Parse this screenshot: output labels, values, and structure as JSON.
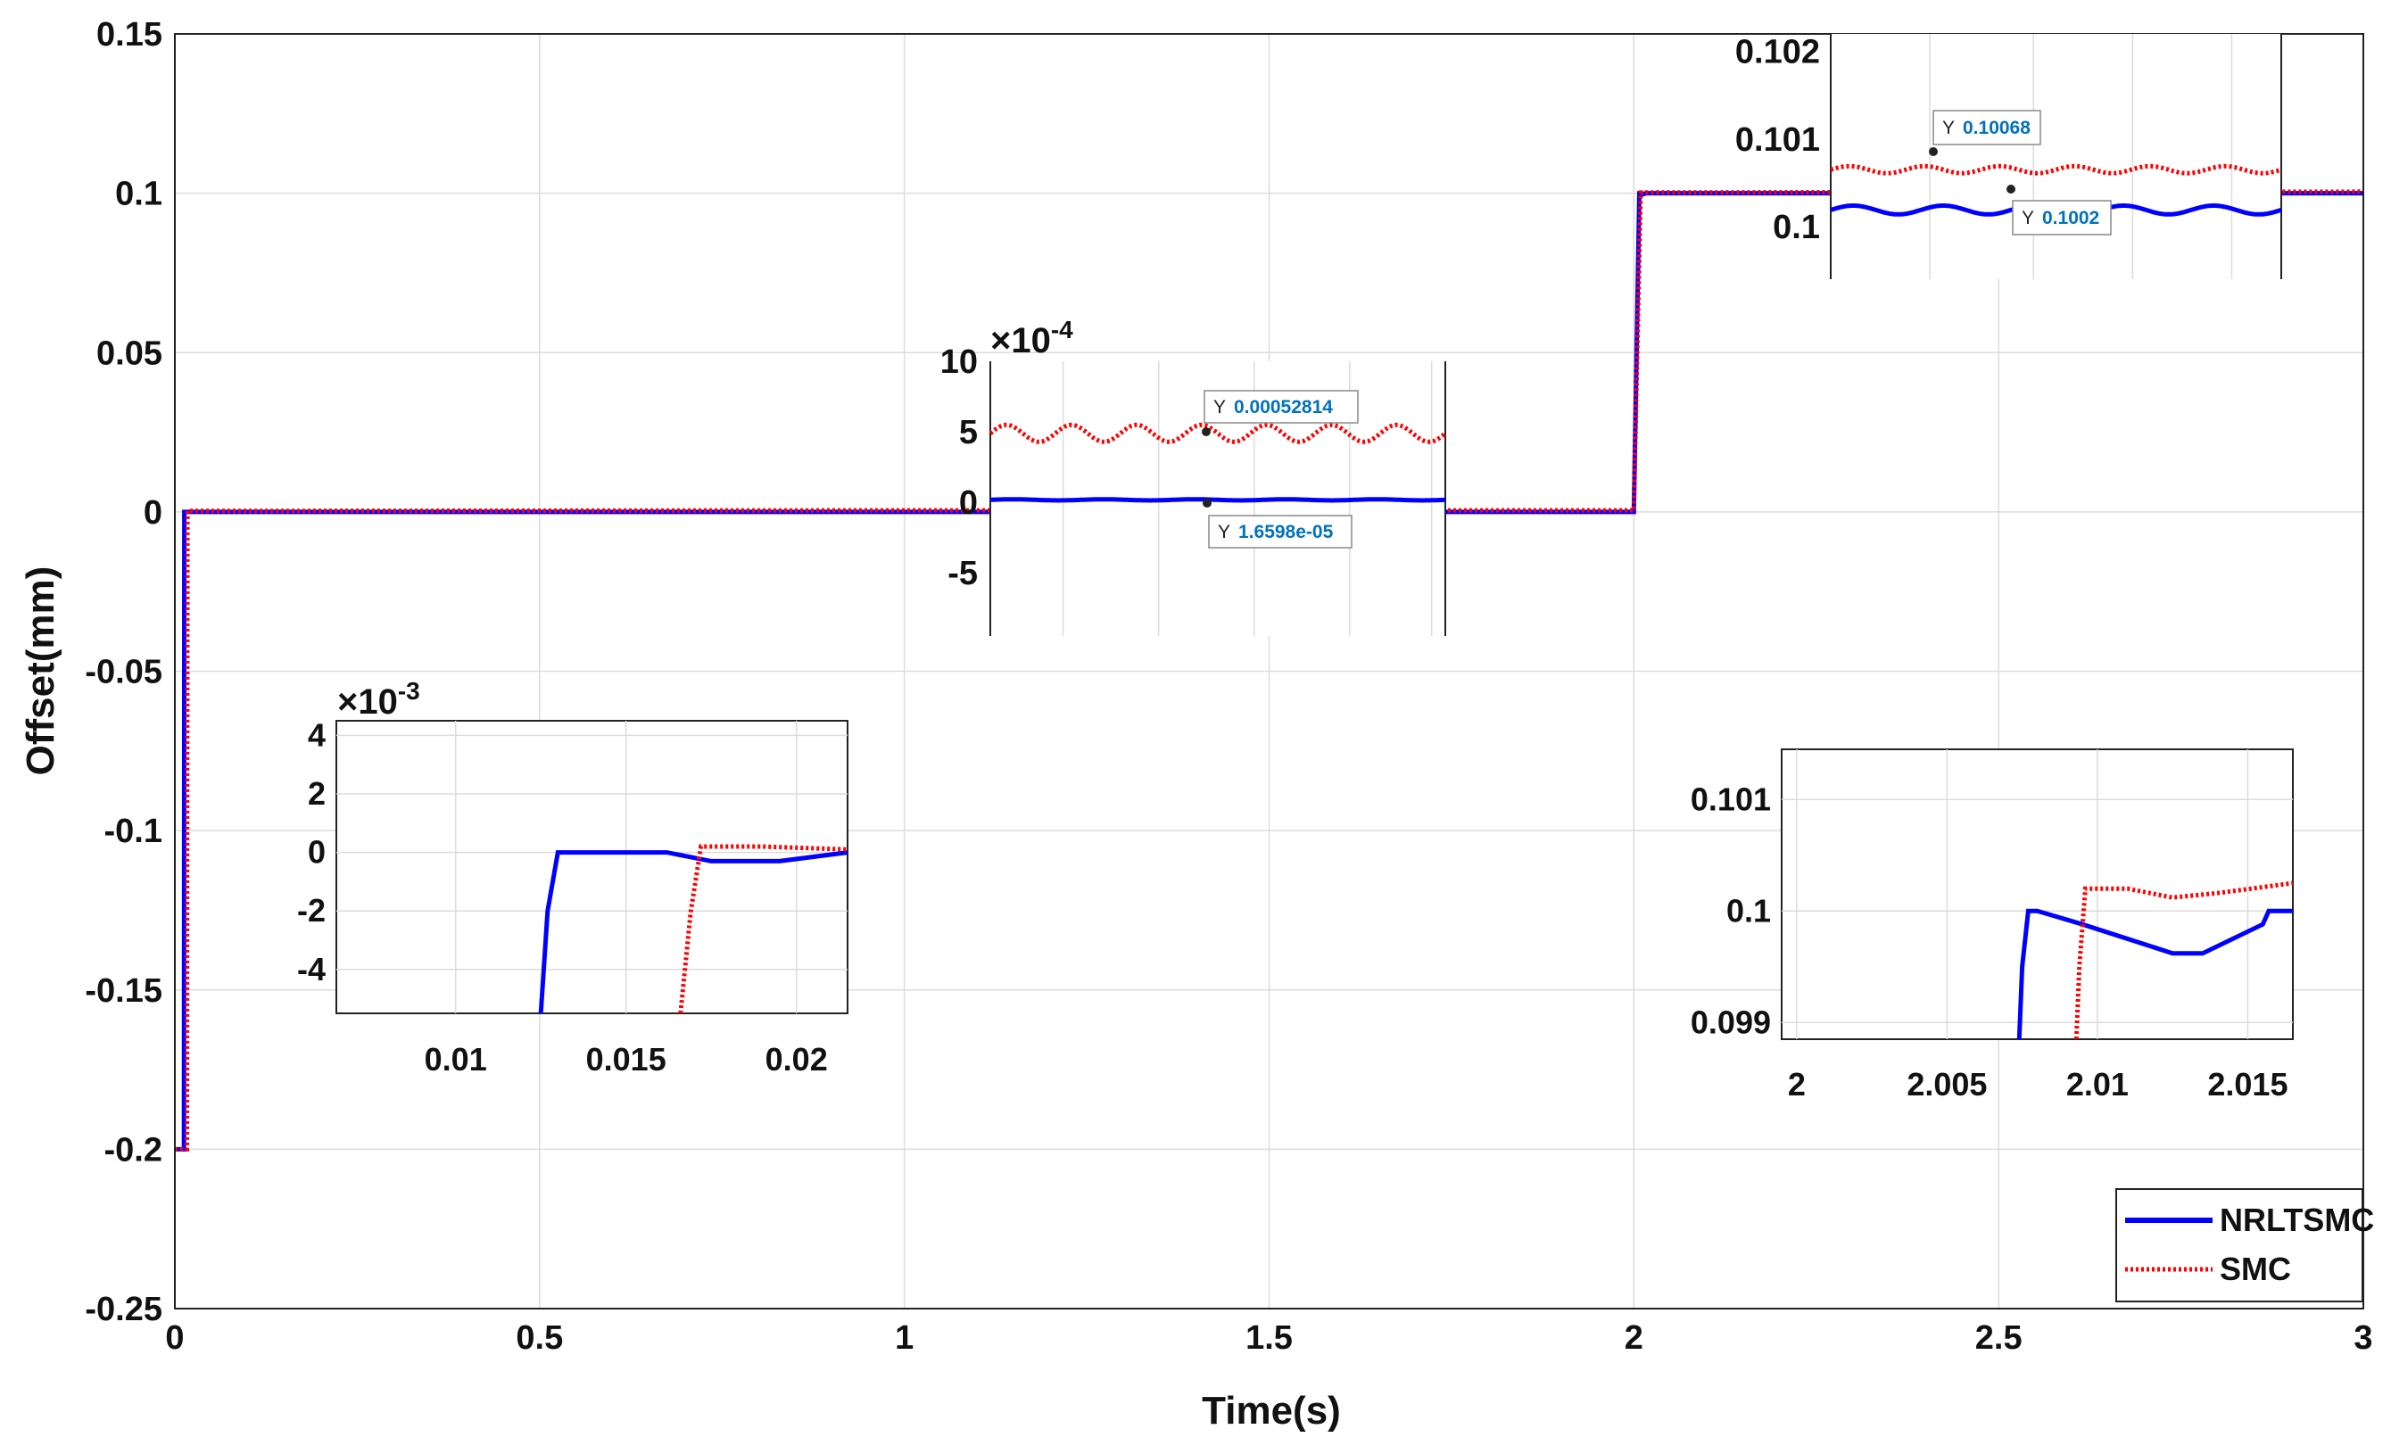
{
  "chart_data": {
    "type": "line",
    "xlabel": "Time(s)",
    "ylabel": "Offset(mm)",
    "xlim": [
      0,
      3
    ],
    "ylim": [
      -0.25,
      0.15
    ],
    "xticks": [
      "0",
      "0.5",
      "1",
      "1.5",
      "2",
      "2.5",
      "3"
    ],
    "yticks": [
      "-0.25",
      "-0.2",
      "-0.15",
      "-0.1",
      "-0.05",
      "0",
      "0.05",
      "0.1",
      "0.15"
    ],
    "grid": true,
    "legend_position": "bottom-right",
    "series": [
      {
        "name": "NRLTSMC",
        "color": "#0000ff",
        "style": "solid",
        "x": [
          0,
          0.0125,
          0.013,
          0.03,
          1.0,
          2.0,
          2.0074,
          2.0076,
          2.008,
          2.012,
          2.0155,
          2.016,
          3.0
        ],
        "y": [
          -0.2,
          -0.2,
          0,
          0,
          0,
          0,
          0.0986,
          0.1,
          0.1,
          0.09965,
          0.0999,
          0.1,
          0.1
        ]
      },
      {
        "name": "SMC",
        "color": "#ff0000",
        "style": "dotted",
        "x": [
          0,
          0.0165,
          0.0172,
          0.03,
          1.0,
          2.0,
          2.0093,
          2.0095,
          2.011,
          2.013,
          2.0165,
          3.0
        ],
        "y": [
          -0.2,
          -0.2,
          0.0003,
          0.0003,
          0.0005,
          0.0005,
          0.0986,
          0.1002,
          0.1002,
          0.10012,
          0.10025,
          0.1005
        ]
      }
    ],
    "insets": [
      {
        "xlim": [
          0.0065,
          0.0215
        ],
        "ylim": [
          -0.0055,
          0.0045
        ],
        "exponent": "×10",
        "exponent_power": "-3",
        "xticks": [
          "0.01",
          "0.015",
          "0.02"
        ],
        "yticks": [
          "4",
          "2",
          "0",
          "-2",
          "-4"
        ],
        "series": [
          {
            "name": "NRLTSMC",
            "x": [
              0.0125,
              0.0127,
              0.013,
              0.0162,
              0.0175,
              0.0195,
              0.0215
            ],
            "y": [
              -0.0055,
              -0.002,
              0,
              0,
              -0.0003,
              -0.0003,
              0
            ]
          },
          {
            "name": "SMC",
            "x": [
              0.0166,
              0.0169,
              0.0172,
              0.019,
              0.0215
            ],
            "y": [
              -0.0055,
              -0.002,
              0.0002,
              0.0002,
              0.0001
            ]
          }
        ]
      },
      {
        "xlim": [
          0.98,
          1.75
        ],
        "ylim": [
          -0.00095,
          0.001
        ],
        "exponent": "×10",
        "exponent_power": "-4",
        "xticks": [],
        "yticks": [
          "10",
          "5",
          "0",
          "-5"
        ],
        "data_tips": [
          {
            "label": "Y",
            "value": "0.00052814",
            "x": 1.41,
            "y": 0.00052814
          },
          {
            "label": "Y",
            "value": "1.6598e-05",
            "x": 1.41,
            "y": 1.6598e-05
          }
        ]
      },
      {
        "xlim": [
          2.28,
          2.95
        ],
        "ylim": [
          0.0994,
          0.1022
        ],
        "xticks": [],
        "yticks": [
          "0.102",
          "0.101",
          "0.1"
        ],
        "data_tips": [
          {
            "label": "Y",
            "value": "0.10068",
            "x": 2.4,
            "y": 0.10068
          },
          {
            "label": "Y",
            "value": "0.1002",
            "x": 2.52,
            "y": 0.1002
          }
        ]
      },
      {
        "xlim": [
          1.9995,
          2.0165
        ],
        "ylim": [
          0.09885,
          0.10145
        ],
        "xticks": [
          "2",
          "2.005",
          "2.01",
          "2.015"
        ],
        "yticks": [
          "0.101",
          "0.1",
          "0.099"
        ],
        "series": [
          {
            "name": "NRLTSMC",
            "x": [
              2.0074,
              2.0075,
              2.0077,
              2.008,
              2.0095,
              2.0125,
              2.0135,
              2.0155,
              2.0157,
              2.0165
            ],
            "y": [
              0.09885,
              0.0995,
              0.1,
              0.1,
              0.09988,
              0.09962,
              0.09962,
              0.09988,
              0.1,
              0.1
            ]
          },
          {
            "name": "SMC",
            "x": [
              2.0093,
              2.0094,
              2.0096,
              2.011,
              2.0125,
              2.014,
              2.0165
            ],
            "y": [
              0.09885,
              0.0995,
              0.1002,
              0.1002,
              0.10012,
              0.10016,
              0.10025
            ]
          }
        ]
      }
    ]
  }
}
